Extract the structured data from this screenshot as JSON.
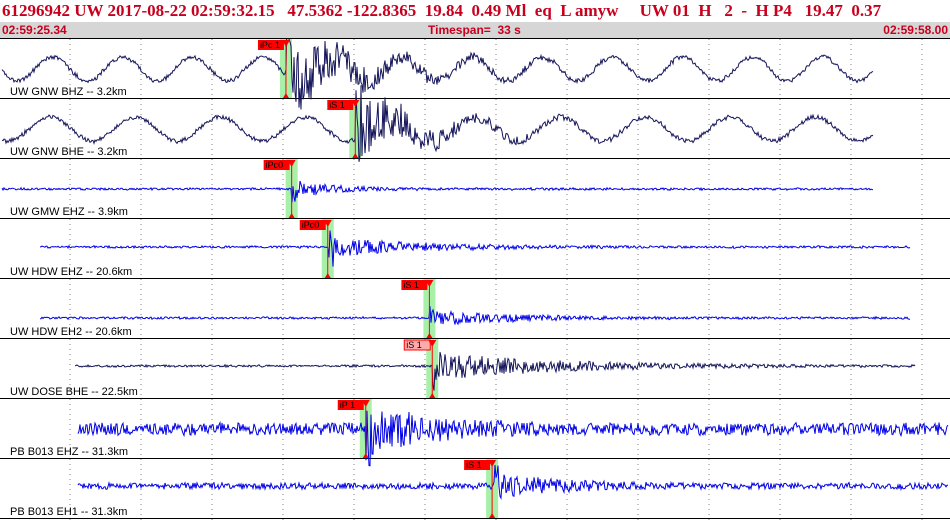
{
  "header": {
    "text": "61296942 UW 2017-08-22 02:59:32.15   47.5362 -122.8365  19.84  0.49 Ml  eq  L amyw     UW 01  H   2  -  H P4   19.47  0.37",
    "start_time": "02:59:25.34",
    "timespan": "Timespan=  33 s",
    "end_time": "02:59:58.00"
  },
  "colors": {
    "header_red": "#c8001e",
    "trace_dark": "#14145a",
    "trace_blue": "#0000e6",
    "pick_red": "#ff0000",
    "window_green": "#a8f0a8",
    "pick_light": "#ffaaaa"
  },
  "traces": [
    {
      "label": "UW GNW BHZ -- 3.2km",
      "color": "trace_dark",
      "picks": [
        {
          "label": "iPc 1",
          "time_frac": 0.301,
          "style": "filled"
        }
      ]
    },
    {
      "label": "UW GNW BHE -- 3.2km",
      "color": "trace_dark",
      "picks": [
        {
          "label": "iS 1",
          "time_frac": 0.374,
          "style": "filled"
        }
      ]
    },
    {
      "label": "UW GMW EHZ -- 3.9km",
      "color": "trace_blue",
      "picks": [
        {
          "label": "iPc0",
          "time_frac": 0.307,
          "style": "filled"
        }
      ]
    },
    {
      "label": "UW HDW EHZ -- 20.6km",
      "color": "trace_blue",
      "picks": [
        {
          "label": "iPc0",
          "time_frac": 0.345,
          "style": "filled"
        }
      ]
    },
    {
      "label": "UW HDW EH2 -- 20.6km",
      "color": "trace_blue",
      "picks": [
        {
          "label": "iS 1",
          "time_frac": 0.452,
          "style": "filled"
        }
      ]
    },
    {
      "label": "UW DOSE BHE -- 22.5km",
      "color": "trace_dark",
      "picks": [
        {
          "label": "iS 1",
          "time_frac": 0.455,
          "style": "light"
        }
      ]
    },
    {
      "label": "PB B013 EHZ -- 31.3km",
      "color": "trace_blue",
      "picks": [
        {
          "label": "iP 1",
          "time_frac": 0.385,
          "style": "filled"
        }
      ]
    },
    {
      "label": "PB B013 EH1 -- 31.3km",
      "color": "trace_blue",
      "picks": [
        {
          "label": "iS 1",
          "time_frac": 0.518,
          "style": "filled"
        }
      ]
    }
  ]
}
